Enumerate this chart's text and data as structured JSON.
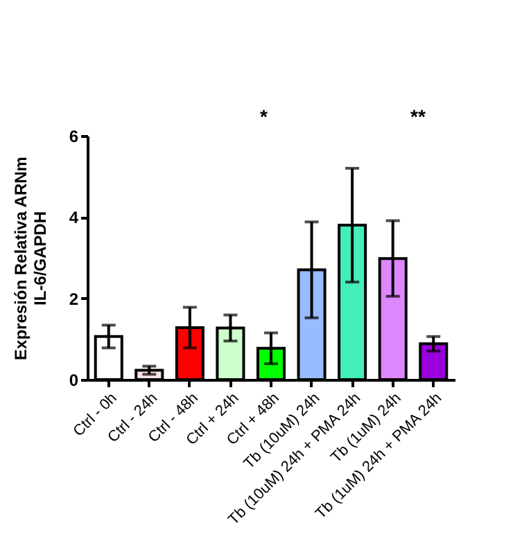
{
  "chart_data": {
    "type": "bar",
    "ylabel": "Expresión Relativa ARNm\nIL-6/GAPDH",
    "categories": [
      "Ctrl - 0h",
      "Ctrl - 24h",
      "Ctrl - 48h",
      "Ctrl + 24h",
      "Ctrl + 48h",
      "Tb (10uM) 24h",
      "Tb (10uM) 24h + PMA 24h",
      "Tb (1uM) 24h",
      "Tb (1uM) 24h + PMA 24h"
    ],
    "values": [
      1.06,
      0.23,
      1.28,
      1.27,
      0.77,
      2.7,
      3.8,
      2.98,
      0.88
    ],
    "errors": [
      0.28,
      0.1,
      0.5,
      0.32,
      0.38,
      1.18,
      1.4,
      0.93,
      0.18
    ],
    "colors": [
      "#ffffff",
      "#fce4e4",
      "#ff0000",
      "#ccffcc",
      "#00ff00",
      "#99bbff",
      "#44eebb",
      "#dd88ff",
      "#9900dd"
    ],
    "ylim": [
      0,
      6
    ],
    "yticks": [
      0,
      2,
      4,
      6
    ],
    "annotations": [
      "*",
      "**"
    ]
  }
}
